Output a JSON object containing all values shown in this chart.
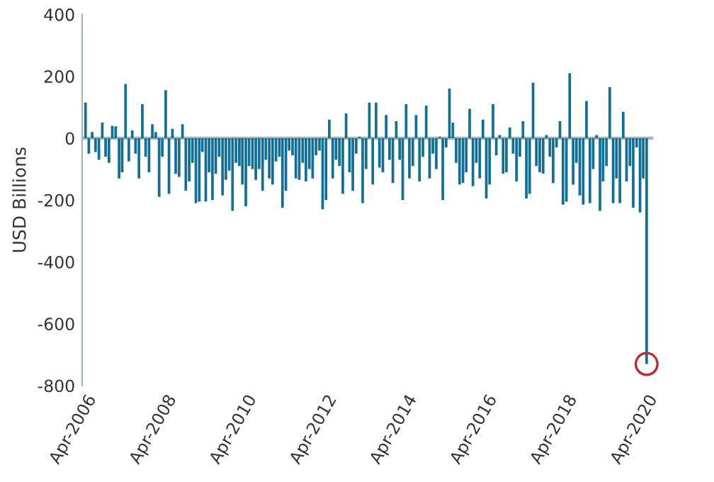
{
  "chart_data": {
    "type": "bar",
    "ylabel": "USD Billions",
    "color": "#0f6f96",
    "x": [
      "2006-04",
      "2006-05",
      "2006-06",
      "2006-07",
      "2006-08",
      "2006-09",
      "2006-10",
      "2006-11",
      "2006-12",
      "2007-01",
      "2007-02",
      "2007-03",
      "2007-04",
      "2007-05",
      "2007-06",
      "2007-07",
      "2007-08",
      "2007-09",
      "2007-10",
      "2007-11",
      "2007-12",
      "2008-01",
      "2008-02",
      "2008-03",
      "2008-04",
      "2008-05",
      "2008-06",
      "2008-07",
      "2008-08",
      "2008-09",
      "2008-10",
      "2008-11",
      "2008-12",
      "2009-01",
      "2009-02",
      "2009-03",
      "2009-04",
      "2009-05",
      "2009-06",
      "2009-07",
      "2009-08",
      "2009-09",
      "2009-10",
      "2009-11",
      "2009-12",
      "2010-01",
      "2010-02",
      "2010-03",
      "2010-04",
      "2010-05",
      "2010-06",
      "2010-07",
      "2010-08",
      "2010-09",
      "2010-10",
      "2010-11",
      "2010-12",
      "2011-01",
      "2011-02",
      "2011-03",
      "2011-04",
      "2011-05",
      "2011-06",
      "2011-07",
      "2011-08",
      "2011-09",
      "2011-10",
      "2011-11",
      "2011-12",
      "2012-01",
      "2012-02",
      "2012-03",
      "2012-04",
      "2012-05",
      "2012-06",
      "2012-07",
      "2012-08",
      "2012-09",
      "2012-10",
      "2012-11",
      "2012-12",
      "2013-01",
      "2013-02",
      "2013-03",
      "2013-04",
      "2013-05",
      "2013-06",
      "2013-07",
      "2013-08",
      "2013-09",
      "2013-10",
      "2013-11",
      "2013-12",
      "2014-01",
      "2014-02",
      "2014-03",
      "2014-04",
      "2014-05",
      "2014-06",
      "2014-07",
      "2014-08",
      "2014-09",
      "2014-10",
      "2014-11",
      "2014-12",
      "2015-01",
      "2015-02",
      "2015-03",
      "2015-04",
      "2015-05",
      "2015-06",
      "2015-07",
      "2015-08",
      "2015-09",
      "2015-10",
      "2015-11",
      "2015-12",
      "2016-01",
      "2016-02",
      "2016-03",
      "2016-04",
      "2016-05",
      "2016-06",
      "2016-07",
      "2016-08",
      "2016-09",
      "2016-10",
      "2016-11",
      "2016-12",
      "2017-01",
      "2017-02",
      "2017-03",
      "2017-04",
      "2017-05",
      "2017-06",
      "2017-07",
      "2017-08",
      "2017-09",
      "2017-10",
      "2017-11",
      "2017-12",
      "2018-01",
      "2018-02",
      "2018-03",
      "2018-04",
      "2018-05",
      "2018-06",
      "2018-07",
      "2018-08",
      "2018-09",
      "2018-10",
      "2018-11",
      "2018-12",
      "2019-01",
      "2019-02",
      "2019-03",
      "2019-04",
      "2019-05",
      "2019-06",
      "2019-07",
      "2019-08",
      "2019-09",
      "2019-10",
      "2019-11",
      "2019-12",
      "2020-01",
      "2020-02",
      "2020-03",
      "2020-04"
    ],
    "values": [
      115,
      -50,
      20,
      -45,
      -70,
      50,
      -60,
      -80,
      40,
      38,
      -130,
      -110,
      175,
      -75,
      25,
      -50,
      -130,
      110,
      -60,
      -110,
      45,
      20,
      -190,
      -60,
      155,
      -180,
      30,
      -115,
      -125,
      45,
      -170,
      -140,
      -80,
      -210,
      -205,
      -45,
      -205,
      -110,
      -200,
      -115,
      -60,
      -185,
      -135,
      -105,
      -235,
      -80,
      -90,
      -150,
      -220,
      -90,
      -100,
      -135,
      -100,
      -170,
      -70,
      -130,
      -150,
      -75,
      -60,
      -225,
      -170,
      -40,
      -55,
      -130,
      -135,
      -80,
      -140,
      -100,
      -130,
      -55,
      -40,
      -230,
      -200,
      60,
      -130,
      -70,
      -90,
      -180,
      80,
      -110,
      -170,
      -50,
      5,
      -210,
      -100,
      115,
      -150,
      115,
      -95,
      -110,
      75,
      -70,
      -145,
      55,
      -70,
      -200,
      110,
      -130,
      -90,
      75,
      -140,
      -60,
      105,
      -130,
      -50,
      -100,
      5,
      -200,
      -30,
      160,
      50,
      -80,
      -150,
      -145,
      -110,
      95,
      -155,
      -80,
      -130,
      60,
      -195,
      -150,
      110,
      -55,
      10,
      -115,
      -110,
      35,
      -50,
      -140,
      -60,
      55,
      -195,
      -180,
      180,
      -90,
      -110,
      -115,
      10,
      -60,
      -145,
      -30,
      55,
      -215,
      -205,
      210,
      -150,
      -80,
      -185,
      -215,
      120,
      -210,
      -100,
      10,
      -235,
      -140,
      -90,
      165,
      -210,
      -130,
      -210,
      85,
      -140,
      -90,
      -225,
      -30,
      -240,
      -130,
      -730
    ],
    "xlim": [
      "2006-03",
      "2020-06"
    ],
    "xticks": [
      {
        "value": "2006-04",
        "label": "Apr-2006"
      },
      {
        "value": "2008-04",
        "label": "Apr-2008"
      },
      {
        "value": "2010-04",
        "label": "Apr-2010"
      },
      {
        "value": "2012-04",
        "label": "Apr-2012"
      },
      {
        "value": "2014-04",
        "label": "Apr-2014"
      },
      {
        "value": "2016-04",
        "label": "Apr-2016"
      },
      {
        "value": "2018-04",
        "label": "Apr-2018"
      },
      {
        "value": "2020-04",
        "label": "Apr-2020"
      }
    ],
    "ylim": [
      -800,
      400
    ],
    "yticks": [
      -800,
      -600,
      -400,
      -200,
      0,
      200,
      400
    ],
    "ref_lines": [
      {
        "axis": "y",
        "value": 0,
        "color": "#a9b3ba"
      }
    ],
    "grid": false,
    "legend": false
  }
}
